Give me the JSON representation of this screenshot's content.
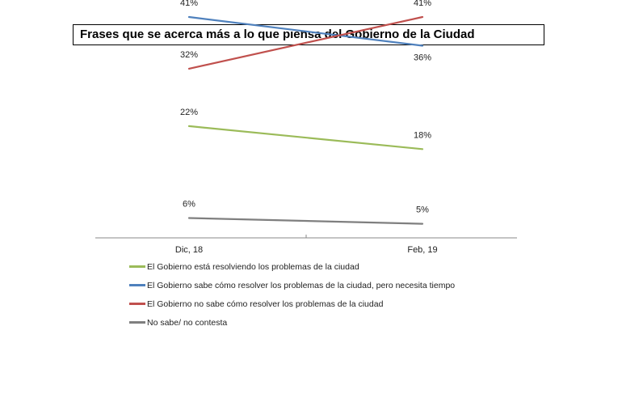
{
  "title": "Frases que se acerca más a lo que piensa del Gobierno de la Ciudad",
  "chart_data": {
    "type": "line",
    "categories": [
      "Dic, 18",
      "Feb, 19"
    ],
    "ylim": [
      0,
      50
    ],
    "grid": false,
    "legend_position": "bottom",
    "series": [
      {
        "name": "El Gobierno está resolviendo los problemas de la ciudad",
        "values": [
          22,
          18
        ],
        "labels": [
          "22%",
          "18%"
        ],
        "color": "#9bbb59"
      },
      {
        "name": "El Gobierno sabe cómo resolver los problemas de la ciudad, pero necesita tiempo",
        "values": [
          41,
          36
        ],
        "labels": [
          "41%",
          "36%"
        ],
        "color": "#4f81bd"
      },
      {
        "name": "El Gobierno no sabe cómo resolver los problemas de la ciudad",
        "values": [
          32,
          41
        ],
        "labels": [
          "32%",
          "41%"
        ],
        "color": "#c0504d"
      },
      {
        "name": "No sabe/ no contesta",
        "values": [
          6,
          5
        ],
        "labels": [
          "6%",
          "5%"
        ],
        "color": "#7f7f7f"
      }
    ]
  }
}
